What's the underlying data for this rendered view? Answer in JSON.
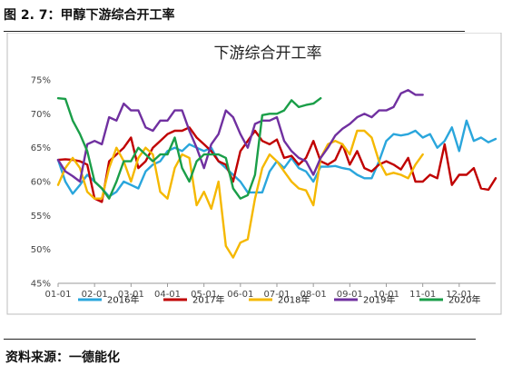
{
  "figure_caption": "图 2. 7：甲醇下游综合开工率",
  "source_text": "资料来源：一德能化",
  "chart_data": {
    "type": "line",
    "title": "下游综合开工率",
    "xlabel": "",
    "ylabel": "",
    "ylim": [
      45,
      75
    ],
    "x_ticks": [
      "01-01",
      "02-01",
      "03-01",
      "04-01",
      "05-01",
      "06-01",
      "07-01",
      "08-01",
      "09-01",
      "10-01",
      "11-01",
      "12-01"
    ],
    "y_ticks": [
      "45%",
      "50%",
      "55%",
      "60%",
      "65%",
      "70%",
      "75%"
    ],
    "grid": false,
    "legend_position": "bottom",
    "series": [
      {
        "name": "2016年",
        "color": "#2aa6dc",
        "points": [
          [
            0,
            63.2
          ],
          [
            0.2,
            60
          ],
          [
            0.4,
            58.2
          ],
          [
            0.6,
            59.5
          ],
          [
            0.8,
            61
          ],
          [
            1.0,
            60
          ],
          [
            1.2,
            59
          ],
          [
            1.4,
            57.8
          ],
          [
            1.6,
            58.5
          ],
          [
            1.8,
            60
          ],
          [
            2.0,
            59.5
          ],
          [
            2.2,
            59
          ],
          [
            2.4,
            61.5
          ],
          [
            2.6,
            62.5
          ],
          [
            2.8,
            63
          ],
          [
            3.0,
            64.5
          ],
          [
            3.2,
            65
          ],
          [
            3.4,
            64.5
          ],
          [
            3.6,
            65.5
          ],
          [
            3.8,
            65
          ],
          [
            4.0,
            64.5
          ],
          [
            4.2,
            65
          ],
          [
            4.4,
            63
          ],
          [
            4.6,
            62
          ],
          [
            4.8,
            61
          ],
          [
            5.0,
            60
          ],
          [
            5.2,
            58.4
          ],
          [
            5.4,
            58.4
          ],
          [
            5.6,
            58.4
          ],
          [
            5.8,
            61.5
          ],
          [
            6.0,
            63
          ],
          [
            6.2,
            62
          ],
          [
            6.4,
            63.5
          ],
          [
            6.6,
            62
          ],
          [
            6.8,
            61.5
          ],
          [
            7.0,
            60
          ],
          [
            7.2,
            62.2
          ],
          [
            7.4,
            62.2
          ],
          [
            7.6,
            62.3
          ],
          [
            7.8,
            62
          ],
          [
            8.0,
            61.8
          ],
          [
            8.2,
            61
          ],
          [
            8.4,
            60.5
          ],
          [
            8.6,
            60.5
          ],
          [
            8.8,
            63
          ],
          [
            9.0,
            66
          ],
          [
            9.2,
            67
          ],
          [
            9.4,
            66.8
          ],
          [
            9.6,
            67
          ],
          [
            9.8,
            67.5
          ],
          [
            10.0,
            66.5
          ],
          [
            10.2,
            67
          ],
          [
            10.4,
            65
          ],
          [
            10.6,
            66
          ],
          [
            10.8,
            68
          ],
          [
            11.0,
            64.5
          ],
          [
            11.2,
            69
          ],
          [
            11.4,
            66
          ],
          [
            11.6,
            66.5
          ],
          [
            11.8,
            65.8
          ],
          [
            12.0,
            66.3
          ]
        ]
      },
      {
        "name": "2017年",
        "color": "#c00000",
        "points": [
          [
            0,
            63.2
          ],
          [
            0.2,
            63.3
          ],
          [
            0.4,
            63.2
          ],
          [
            0.6,
            63
          ],
          [
            0.8,
            62.5
          ],
          [
            1.0,
            57.5
          ],
          [
            1.2,
            57
          ],
          [
            1.4,
            63
          ],
          [
            1.6,
            64
          ],
          [
            1.8,
            65
          ],
          [
            2.0,
            66.5
          ],
          [
            2.2,
            62
          ],
          [
            2.4,
            63
          ],
          [
            2.6,
            65
          ],
          [
            2.8,
            66
          ],
          [
            3.0,
            67
          ],
          [
            3.2,
            67.5
          ],
          [
            3.4,
            67.5
          ],
          [
            3.6,
            68
          ],
          [
            3.8,
            66.5
          ],
          [
            4.0,
            65.5
          ],
          [
            4.2,
            64.5
          ],
          [
            4.4,
            63
          ],
          [
            4.6,
            62.5
          ],
          [
            4.8,
            60
          ],
          [
            5.0,
            64.5
          ],
          [
            5.2,
            66
          ],
          [
            5.4,
            67.5
          ],
          [
            5.6,
            66
          ],
          [
            5.8,
            65.5
          ],
          [
            6.0,
            66.2
          ],
          [
            6.2,
            63.5
          ],
          [
            6.4,
            63.8
          ],
          [
            6.6,
            62.5
          ],
          [
            6.8,
            63.5
          ],
          [
            7.0,
            66
          ],
          [
            7.2,
            63
          ],
          [
            7.4,
            62.5
          ],
          [
            7.6,
            63.2
          ],
          [
            7.8,
            65.5
          ],
          [
            8.0,
            62.5
          ],
          [
            8.2,
            64.5
          ],
          [
            8.4,
            62
          ],
          [
            8.6,
            61.5
          ],
          [
            8.8,
            62.5
          ],
          [
            9.0,
            63
          ],
          [
            9.2,
            62.5
          ],
          [
            9.4,
            61.8
          ],
          [
            9.6,
            63.5
          ],
          [
            9.8,
            60
          ],
          [
            10.0,
            60
          ],
          [
            10.2,
            61
          ],
          [
            10.4,
            60.5
          ],
          [
            10.6,
            65.5
          ],
          [
            10.8,
            59.5
          ],
          [
            11.0,
            61
          ],
          [
            11.2,
            61
          ],
          [
            11.4,
            62
          ],
          [
            11.6,
            59
          ],
          [
            11.8,
            58.8
          ],
          [
            12.0,
            60.5
          ]
        ]
      },
      {
        "name": "2018年",
        "color": "#f5b800",
        "points": [
          [
            0,
            59.5
          ],
          [
            0.2,
            62
          ],
          [
            0.4,
            63.5
          ],
          [
            0.6,
            62
          ],
          [
            0.8,
            58.5
          ],
          [
            1.0,
            57.5
          ],
          [
            1.2,
            57.5
          ],
          [
            1.4,
            62
          ],
          [
            1.6,
            65
          ],
          [
            1.8,
            63
          ],
          [
            2.0,
            60
          ],
          [
            2.2,
            63.5
          ],
          [
            2.4,
            65
          ],
          [
            2.6,
            64
          ],
          [
            2.8,
            58.5
          ],
          [
            3.0,
            57.5
          ],
          [
            3.2,
            62
          ],
          [
            3.4,
            64
          ],
          [
            3.6,
            63.5
          ],
          [
            3.8,
            56.5
          ],
          [
            4.0,
            58.5
          ],
          [
            4.2,
            56
          ],
          [
            4.4,
            60
          ],
          [
            4.6,
            50.5
          ],
          [
            4.8,
            48.8
          ],
          [
            5.0,
            51
          ],
          [
            5.2,
            51.5
          ],
          [
            5.4,
            57.5
          ],
          [
            5.6,
            62
          ],
          [
            5.8,
            64
          ],
          [
            6.0,
            63
          ],
          [
            6.2,
            61.5
          ],
          [
            6.4,
            60
          ],
          [
            6.6,
            59
          ],
          [
            6.8,
            58.7
          ],
          [
            7.0,
            56.5
          ],
          [
            7.2,
            63.5
          ],
          [
            7.4,
            65.5
          ],
          [
            7.6,
            66
          ],
          [
            7.8,
            65.5
          ],
          [
            8.0,
            64
          ],
          [
            8.2,
            67.5
          ],
          [
            8.4,
            67.5
          ],
          [
            8.6,
            66.5
          ],
          [
            8.8,
            63
          ],
          [
            9.0,
            61
          ],
          [
            9.2,
            61.3
          ],
          [
            9.4,
            61
          ],
          [
            9.6,
            60.5
          ],
          [
            9.8,
            62.5
          ],
          [
            10.0,
            64
          ]
        ]
      },
      {
        "name": "2019年",
        "color": "#7030a0",
        "points": [
          [
            0,
            63.2
          ],
          [
            0.2,
            61.5
          ],
          [
            0.4,
            60.8
          ],
          [
            0.6,
            60
          ],
          [
            0.8,
            65.5
          ],
          [
            1.0,
            66
          ],
          [
            1.2,
            65.5
          ],
          [
            1.4,
            69.5
          ],
          [
            1.6,
            69
          ],
          [
            1.8,
            71.5
          ],
          [
            2.0,
            70.5
          ],
          [
            2.2,
            70.5
          ],
          [
            2.4,
            68
          ],
          [
            2.6,
            67.5
          ],
          [
            2.8,
            69
          ],
          [
            3.0,
            69
          ],
          [
            3.2,
            70.5
          ],
          [
            3.4,
            70.5
          ],
          [
            3.6,
            67.5
          ],
          [
            3.8,
            65
          ],
          [
            4.0,
            62
          ],
          [
            4.2,
            65.5
          ],
          [
            4.4,
            67
          ],
          [
            4.6,
            70.5
          ],
          [
            4.8,
            69.5
          ],
          [
            5.0,
            67
          ],
          [
            5.2,
            65
          ],
          [
            5.4,
            68.5
          ],
          [
            5.6,
            69
          ],
          [
            5.8,
            69
          ],
          [
            6.0,
            69.5
          ],
          [
            6.2,
            66
          ],
          [
            6.4,
            64.5
          ],
          [
            6.6,
            63.5
          ],
          [
            6.8,
            63
          ],
          [
            7.0,
            61
          ],
          [
            7.2,
            63.5
          ],
          [
            7.4,
            65
          ],
          [
            7.6,
            66.8
          ],
          [
            7.8,
            67.8
          ],
          [
            8.0,
            68.5
          ],
          [
            8.2,
            69.5
          ],
          [
            8.4,
            70
          ],
          [
            8.6,
            69.5
          ],
          [
            8.8,
            70.5
          ],
          [
            9.0,
            70.5
          ],
          [
            9.2,
            71
          ],
          [
            9.4,
            73
          ],
          [
            9.6,
            73.5
          ],
          [
            9.8,
            72.8
          ],
          [
            10.0,
            72.8
          ]
        ]
      },
      {
        "name": "2020年",
        "color": "#1a9e48",
        "points": [
          [
            0,
            72.3
          ],
          [
            0.2,
            72.2
          ],
          [
            0.4,
            69
          ],
          [
            0.6,
            67
          ],
          [
            0.8,
            64.5
          ],
          [
            1.0,
            60
          ],
          [
            1.2,
            59
          ],
          [
            1.4,
            57.5
          ],
          [
            1.6,
            60
          ],
          [
            1.8,
            63
          ],
          [
            2.0,
            63
          ],
          [
            2.2,
            65
          ],
          [
            2.4,
            64
          ],
          [
            2.6,
            63
          ],
          [
            2.8,
            64
          ],
          [
            3.0,
            64
          ],
          [
            3.2,
            66.5
          ],
          [
            3.4,
            62
          ],
          [
            3.6,
            60
          ],
          [
            3.8,
            63
          ],
          [
            4.0,
            64
          ],
          [
            4.2,
            64
          ],
          [
            4.4,
            64
          ],
          [
            4.6,
            63.5
          ],
          [
            4.8,
            59
          ],
          [
            5.0,
            57.5
          ],
          [
            5.2,
            58
          ],
          [
            5.4,
            61
          ],
          [
            5.6,
            69.8
          ],
          [
            5.8,
            70
          ],
          [
            6.0,
            70
          ],
          [
            6.2,
            70.5
          ],
          [
            6.4,
            72
          ],
          [
            6.6,
            71
          ],
          [
            6.8,
            71.3
          ],
          [
            7.0,
            71.5
          ],
          [
            7.2,
            72.3
          ]
        ]
      }
    ]
  }
}
